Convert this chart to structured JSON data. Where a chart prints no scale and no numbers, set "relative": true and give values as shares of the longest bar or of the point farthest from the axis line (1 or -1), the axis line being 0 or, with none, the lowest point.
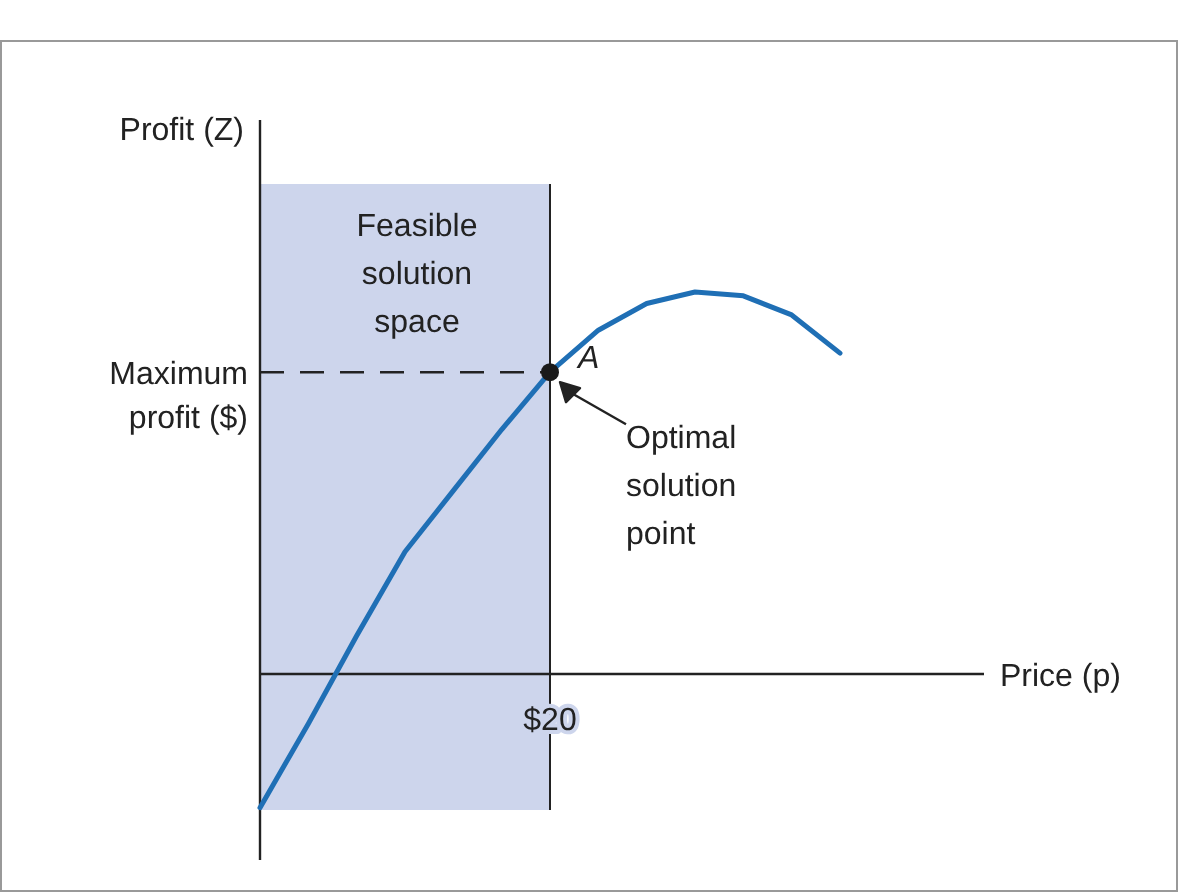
{
  "chart_data": {
    "type": "line",
    "relative": true,
    "xlabel": "Price (p)",
    "ylabel": "Profit (Z)",
    "categories": [
      null,
      null,
      null,
      null,
      null,
      null,
      null,
      null,
      null,
      null,
      null,
      null,
      null
    ],
    "series": [
      {
        "color": "#1f6fb5",
        "values": [
          -0.35,
          -0.13,
          0.1,
          0.32,
          0.48,
          0.64,
          0.79,
          0.9,
          0.97,
          1,
          0.99,
          0.94,
          0.84
        ]
      }
    ],
    "ref_lines": [
      {
        "axis": "y",
        "value": 0.79,
        "label": "Maximum profit ($)",
        "line_style": "dashed"
      }
    ],
    "annotations": [
      "A",
      "Optimal solution point",
      "$20",
      "Feasible solution space"
    ]
  }
}
